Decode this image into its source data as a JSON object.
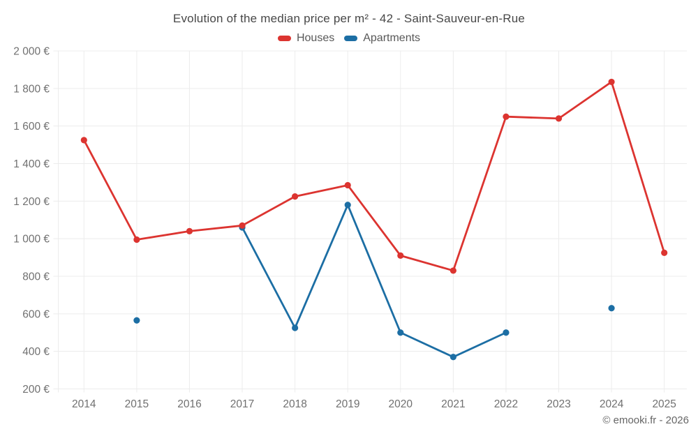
{
  "footer": {
    "credit": "© emooki.fr - 2026"
  },
  "chart_data": {
    "type": "line",
    "title": "Evolution of the median price per m² - 42 - Saint-Sauveur-en-Rue",
    "x": [
      2014,
      2015,
      2016,
      2017,
      2018,
      2019,
      2020,
      2021,
      2022,
      2023,
      2024,
      2025
    ],
    "series": [
      {
        "name": "Houses",
        "color": "#dc3430",
        "values": [
          1525,
          995,
          1040,
          1070,
          1225,
          1285,
          910,
          830,
          1650,
          1640,
          1835,
          925
        ]
      },
      {
        "name": "Apartments",
        "color": "#1c6ea4",
        "values": [
          null,
          565,
          null,
          1060,
          525,
          1180,
          500,
          370,
          500,
          null,
          630,
          null
        ]
      }
    ],
    "y_ticks": [
      {
        "value": 2000,
        "label": "2 000 €"
      },
      {
        "value": 1800,
        "label": "1 800 €"
      },
      {
        "value": 1600,
        "label": "1 600 €"
      },
      {
        "value": 1400,
        "label": "1 400 €"
      },
      {
        "value": 1200,
        "label": "1 200 €"
      },
      {
        "value": 1000,
        "label": "1 000 €"
      },
      {
        "value": 800,
        "label": "800 €"
      },
      {
        "value": 600,
        "label": "600 €"
      },
      {
        "value": 400,
        "label": "400 €"
      },
      {
        "value": 200,
        "label": "200 €"
      }
    ],
    "ylim": [
      200,
      2000
    ],
    "xlabel": "",
    "ylabel": "",
    "grid": true,
    "grid_color": "#ececec",
    "legend_position": "top",
    "unit": "€"
  }
}
